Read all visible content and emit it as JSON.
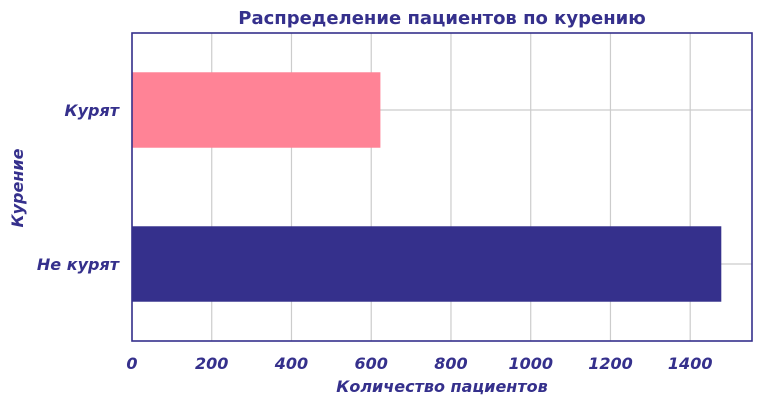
{
  "chart_data": {
    "type": "bar",
    "orientation": "horizontal",
    "title": "Распределение пациентов по курению",
    "xlabel": "Количество пациентов",
    "ylabel": "Курение",
    "categories": [
      "Курят",
      "Не курят"
    ],
    "values": [
      623,
      1478
    ],
    "bar_colors": [
      "#ff8396",
      "#35308c"
    ],
    "xlim": [
      0,
      1555
    ],
    "xticks": [
      0,
      200,
      400,
      600,
      800,
      1000,
      1200,
      1400
    ],
    "grid": true,
    "legend": "none"
  }
}
